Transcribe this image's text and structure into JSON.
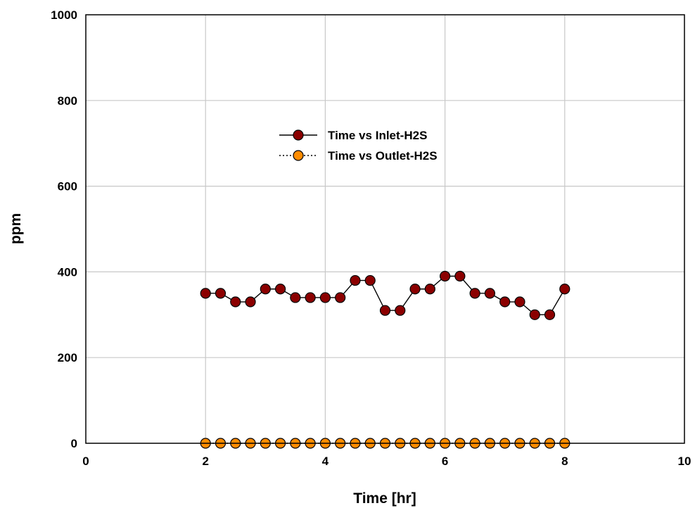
{
  "chart_data": {
    "type": "line",
    "xlabel": "Time [hr]",
    "ylabel": "ppm",
    "xlim": [
      0,
      10
    ],
    "ylim": [
      0,
      1000
    ],
    "xticks": [
      0,
      2,
      4,
      6,
      8,
      10
    ],
    "yticks": [
      0,
      200,
      400,
      600,
      800,
      1000
    ],
    "grid": true,
    "legend_position": "upper-center",
    "series": [
      {
        "name": "Time vs Inlet-H2S",
        "color": "#8b0000",
        "line_style": "solid",
        "marker": "circle",
        "x": [
          2,
          2.25,
          2.5,
          2.75,
          3,
          3.25,
          3.5,
          3.75,
          4,
          4.25,
          4.5,
          4.75,
          5,
          5.25,
          5.5,
          5.75,
          6,
          6.25,
          6.5,
          6.75,
          7,
          7.25,
          7.5,
          7.75,
          8
        ],
        "y": [
          350,
          350,
          330,
          330,
          360,
          360,
          340,
          340,
          340,
          340,
          380,
          380,
          310,
          310,
          360,
          360,
          390,
          390,
          350,
          350,
          330,
          330,
          300,
          300,
          360
        ]
      },
      {
        "name": "Time vs Outlet-H2S",
        "color": "#ff8c00",
        "line_style": "dotted",
        "marker": "circle",
        "x": [
          2,
          2.25,
          2.5,
          2.75,
          3,
          3.25,
          3.5,
          3.75,
          4,
          4.25,
          4.5,
          4.75,
          5,
          5.25,
          5.5,
          5.75,
          6,
          6.25,
          6.5,
          6.75,
          7,
          7.25,
          7.5,
          7.75,
          8
        ],
        "y": [
          0,
          0,
          0,
          0,
          0,
          0,
          0,
          0,
          0,
          0,
          0,
          0,
          0,
          0,
          0,
          0,
          0,
          0,
          0,
          0,
          0,
          0,
          0,
          0,
          0
        ]
      }
    ]
  }
}
